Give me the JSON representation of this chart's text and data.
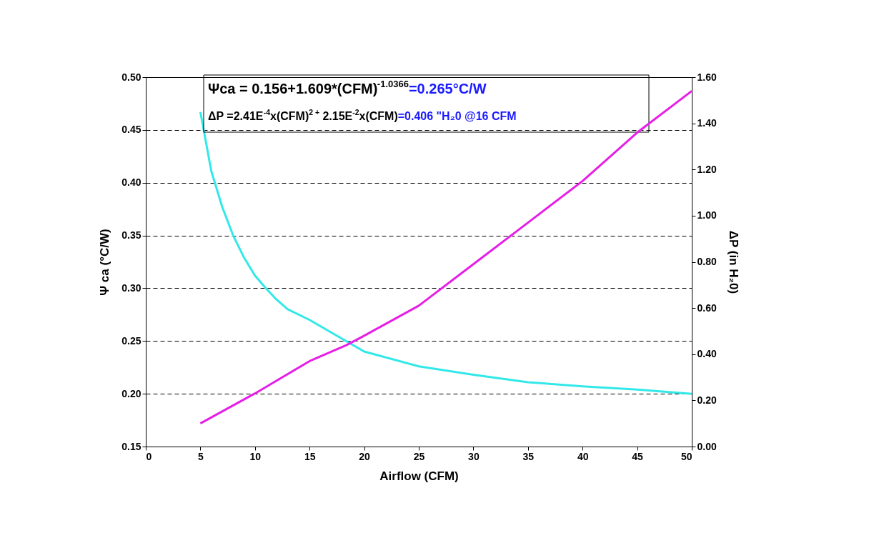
{
  "chart_data": {
    "type": "line",
    "xlabel": "Airflow (CFM)",
    "ylabel": "Ψ ca (°C/W)",
    "y2label": "ΔP (in H₂0)",
    "xlim": [
      0,
      50
    ],
    "xticks": [
      0,
      5,
      10,
      15,
      20,
      25,
      30,
      35,
      40,
      45,
      50
    ],
    "ylim": [
      0.15,
      0.5
    ],
    "yticks": [
      {
        "value": 0.15,
        "label": "0.15"
      },
      {
        "value": 0.2,
        "label": "0.20"
      },
      {
        "value": 0.25,
        "label": "0.25"
      },
      {
        "value": 0.3,
        "label": "0.30"
      },
      {
        "value": 0.35,
        "label": "0.35"
      },
      {
        "value": 0.4,
        "label": "0.40"
      },
      {
        "value": 0.45,
        "label": "0.45"
      },
      {
        "value": 0.5,
        "label": "0.50"
      }
    ],
    "y2lim": [
      0,
      1.6
    ],
    "y2ticks": [
      {
        "value": 0,
        "label": "0.00"
      },
      {
        "value": 0.2,
        "label": "0.20"
      },
      {
        "value": 0.4,
        "label": "0.40"
      },
      {
        "value": 0.6,
        "label": "0.60"
      },
      {
        "value": 0.8,
        "label": "0.80"
      },
      {
        "value": 1.0,
        "label": "1.00"
      },
      {
        "value": 1.2,
        "label": "1.20"
      },
      {
        "value": 1.4,
        "label": "1.40"
      },
      {
        "value": 1.6,
        "label": "1.60"
      }
    ],
    "grid": "y",
    "marker": "none",
    "line_style": "solid",
    "series": [
      {
        "color": "#33e8e8",
        "x": [
          5,
          6,
          7,
          8,
          9,
          10,
          11,
          12,
          13,
          15,
          17,
          20,
          25,
          30,
          35,
          40,
          45,
          50
        ],
        "values": [
          0.467,
          0.411,
          0.377,
          0.35,
          0.329,
          0.312,
          0.3,
          0.289,
          0.28,
          0.27,
          0.258,
          0.24,
          0.226,
          0.218,
          0.211,
          0.207,
          0.204,
          0.2
        ]
      },
      {
        "color": "#e61ee6",
        "axis": "y2",
        "x": [
          5,
          10,
          15,
          18.4,
          20,
          25,
          30,
          35,
          40,
          45,
          50
        ],
        "values": [
          0.1,
          0.23,
          0.37,
          0.44,
          0.48,
          0.61,
          0.79,
          0.97,
          1.15,
          1.36,
          1.54
        ]
      }
    ],
    "annotations": [
      "Ψca = 0.156+1.609*(CFM)$^{-1.0366}$=0.265°C/W",
      "ΔP =2.41E$^{-4}$x(CFM)$^{2 +}$ 2.15E$^{-2}$x(CFM)=0.406 \"H₂0 @16 CFM"
    ]
  }
}
